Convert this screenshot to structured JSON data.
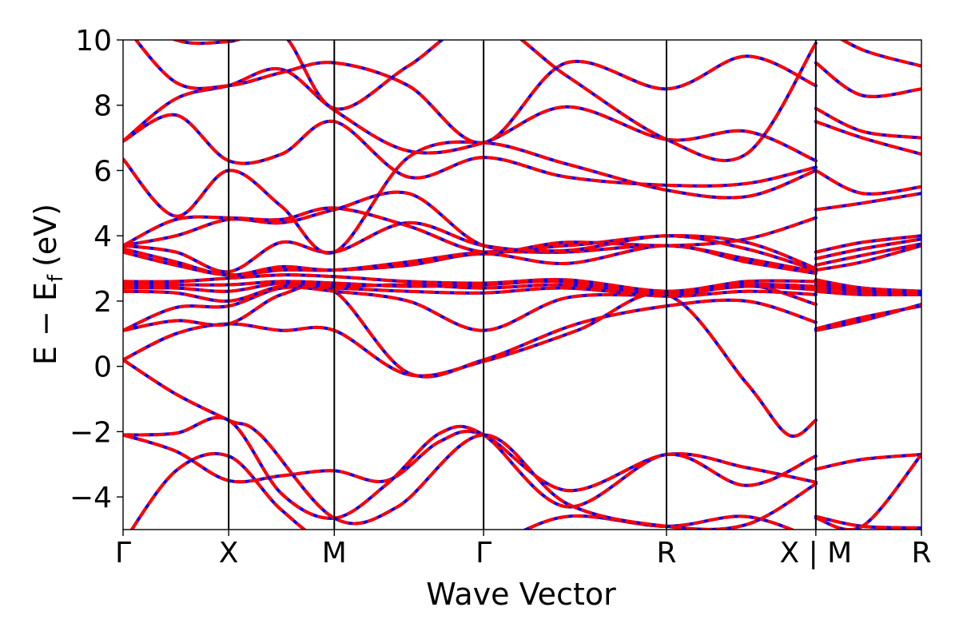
{
  "chart_data": {
    "type": "line",
    "xlabel": "Wave Vector",
    "ylabel_main": "E − E",
    "ylabel_sub": "f",
    "ylabel_unit": "(eV)",
    "ylim": [
      -5,
      10
    ],
    "yticks": [
      {
        "value": -4,
        "label": "−4"
      },
      {
        "value": -2,
        "label": "−2"
      },
      {
        "value": 0,
        "label": "0"
      },
      {
        "value": 2,
        "label": "2"
      },
      {
        "value": 4,
        "label": "4"
      },
      {
        "value": 6,
        "label": "6"
      },
      {
        "value": 8,
        "label": "8"
      },
      {
        "value": 10,
        "label": "10"
      }
    ],
    "kpoints": [
      {
        "x": 0.0,
        "label": "Γ"
      },
      {
        "x": 1.0,
        "label": "X"
      },
      {
        "x": 2.0,
        "label": "M"
      },
      {
        "x": 3.414,
        "label": "Γ"
      },
      {
        "x": 5.146,
        "label": "R"
      },
      {
        "x": 6.56,
        "label": "X | M"
      },
      {
        "x": 7.56,
        "label": "R"
      }
    ],
    "xlim": [
      0,
      7.56
    ],
    "series_colors": {
      "reference": "#0000ff",
      "comparison": "#ff0000"
    },
    "bands": [
      [
        [
          0,
          -5.4
        ],
        [
          0.5,
          -3.2
        ],
        [
          1.0,
          -2.75
        ],
        [
          1.5,
          -4.4
        ],
        [
          2.0,
          -5.5
        ],
        [
          2.7,
          -5.5
        ],
        [
          3.414,
          -5.5
        ],
        [
          4.2,
          -4.6
        ],
        [
          5.146,
          -4.9
        ],
        [
          5.9,
          -4.6
        ],
        [
          6.56,
          -5.3
        ],
        [
          6.56,
          -4.6
        ],
        [
          7.0,
          -4.9
        ],
        [
          7.56,
          -4.95
        ]
      ],
      [
        [
          0,
          -2.1
        ],
        [
          0.5,
          -2.6
        ],
        [
          1.0,
          -3.5
        ],
        [
          1.5,
          -3.35
        ],
        [
          2.0,
          -3.2
        ],
        [
          2.5,
          -3.5
        ],
        [
          3.0,
          -2.3
        ],
        [
          3.414,
          -2.1
        ],
        [
          4.2,
          -3.8
        ],
        [
          5.146,
          -2.7
        ],
        [
          5.9,
          -3.1
        ],
        [
          6.56,
          -3.55
        ],
        [
          6.56,
          -3.15
        ],
        [
          7.0,
          -2.85
        ],
        [
          7.56,
          -2.7
        ]
      ],
      [
        [
          0,
          -2.1
        ],
        [
          0.5,
          -2.05
        ],
        [
          1.0,
          -1.65
        ],
        [
          1.5,
          -3.9
        ],
        [
          2.0,
          -4.65
        ],
        [
          2.5,
          -3.6
        ],
        [
          3.0,
          -2.05
        ],
        [
          3.414,
          -2.1
        ],
        [
          4.2,
          -4.3
        ],
        [
          5.146,
          -2.7
        ],
        [
          5.9,
          -3.65
        ],
        [
          6.56,
          -2.75
        ],
        [
          6.56,
          -4.65
        ],
        [
          7.0,
          -4.9
        ],
        [
          7.56,
          -2.7
        ]
      ],
      [
        [
          0,
          0.2
        ],
        [
          0.5,
          -0.85
        ],
        [
          1.0,
          -1.65
        ],
        [
          1.3,
          -2.1
        ],
        [
          2.0,
          -4.65
        ],
        [
          2.6,
          -4.3
        ],
        [
          3.414,
          -2.1
        ],
        [
          4.2,
          -4.2
        ],
        [
          5.146,
          -4.9
        ],
        [
          5.9,
          -4.85
        ],
        [
          6.56,
          -3.6
        ]
      ],
      [
        [
          0,
          0.2
        ],
        [
          0.5,
          1.0
        ],
        [
          1.0,
          1.3
        ],
        [
          1.5,
          1.1
        ],
        [
          2.0,
          1.1
        ],
        [
          2.7,
          -0.25
        ],
        [
          3.414,
          0.15
        ],
        [
          4.3,
          1.1
        ],
        [
          5.146,
          2.2
        ],
        [
          5.9,
          -0.5
        ],
        [
          6.3,
          -2.1
        ],
        [
          6.56,
          -1.65
        ],
        [
          6.56,
          1.15
        ],
        [
          7.0,
          1.5
        ],
        [
          7.56,
          1.85
        ]
      ],
      [
        [
          0,
          1.1
        ],
        [
          0.5,
          1.4
        ],
        [
          1.0,
          1.3
        ],
        [
          1.5,
          2.2
        ],
        [
          2.0,
          2.3
        ],
        [
          2.7,
          -0.2
        ],
        [
          3.414,
          0.2
        ],
        [
          4.3,
          1.3
        ],
        [
          5.146,
          1.85
        ],
        [
          5.9,
          2.0
        ],
        [
          6.56,
          1.35
        ],
        [
          6.56,
          1.1
        ],
        [
          7.0,
          1.4
        ],
        [
          7.56,
          1.9
        ]
      ],
      [
        [
          0,
          1.1
        ],
        [
          0.5,
          1.8
        ],
        [
          1.0,
          1.85
        ],
        [
          1.5,
          2.4
        ],
        [
          2.0,
          2.3
        ],
        [
          2.7,
          2.0
        ],
        [
          3.414,
          1.1
        ],
        [
          4.2,
          2.1
        ],
        [
          5.146,
          2.2
        ],
        [
          5.9,
          2.5
        ],
        [
          6.56,
          1.9
        ],
        [
          6.56,
          2.3
        ],
        [
          7.0,
          2.2
        ],
        [
          7.56,
          2.2
        ]
      ],
      [
        [
          0,
          2.3
        ],
        [
          0.5,
          2.25
        ],
        [
          1.0,
          2.0
        ],
        [
          1.5,
          2.45
        ],
        [
          2.0,
          2.4
        ],
        [
          2.7,
          2.3
        ],
        [
          3.414,
          2.25
        ],
        [
          4.2,
          2.4
        ],
        [
          5.146,
          2.15
        ],
        [
          5.9,
          2.3
        ],
        [
          6.56,
          2.2
        ],
        [
          6.56,
          2.4
        ],
        [
          7.0,
          2.3
        ],
        [
          7.56,
          2.25
        ]
      ],
      [
        [
          0,
          2.4
        ],
        [
          0.5,
          2.4
        ],
        [
          1.0,
          2.3
        ],
        [
          1.5,
          2.55
        ],
        [
          2.0,
          2.45
        ],
        [
          2.7,
          2.5
        ],
        [
          3.414,
          2.4
        ],
        [
          4.2,
          2.5
        ],
        [
          5.146,
          2.25
        ],
        [
          5.9,
          2.45
        ],
        [
          6.56,
          2.35
        ],
        [
          6.56,
          2.5
        ],
        [
          7.0,
          2.35
        ],
        [
          7.56,
          2.25
        ]
      ],
      [
        [
          0,
          2.5
        ],
        [
          0.5,
          2.5
        ],
        [
          1.0,
          2.5
        ],
        [
          1.5,
          2.6
        ],
        [
          2.0,
          2.55
        ],
        [
          2.7,
          2.45
        ],
        [
          3.414,
          2.5
        ],
        [
          4.2,
          2.6
        ],
        [
          5.146,
          2.2
        ],
        [
          5.9,
          2.5
        ],
        [
          6.56,
          2.45
        ],
        [
          6.56,
          2.55
        ],
        [
          7.0,
          2.4
        ],
        [
          7.56,
          2.2
        ]
      ],
      [
        [
          0,
          2.6
        ],
        [
          0.5,
          2.6
        ],
        [
          1.0,
          2.7
        ],
        [
          1.5,
          2.8
        ],
        [
          2.0,
          2.75
        ],
        [
          2.7,
          2.6
        ],
        [
          3.414,
          2.55
        ],
        [
          4.2,
          2.65
        ],
        [
          5.146,
          2.3
        ],
        [
          5.9,
          2.6
        ],
        [
          6.56,
          2.6
        ],
        [
          6.56,
          2.65
        ],
        [
          7.0,
          2.4
        ],
        [
          7.56,
          2.3
        ]
      ],
      [
        [
          0,
          3.5
        ],
        [
          0.5,
          3.1
        ],
        [
          1.0,
          2.8
        ],
        [
          1.5,
          2.95
        ],
        [
          2.0,
          2.95
        ],
        [
          2.7,
          3.1
        ],
        [
          3.414,
          3.45
        ],
        [
          4.2,
          3.15
        ],
        [
          5.146,
          3.7
        ],
        [
          5.9,
          3.2
        ],
        [
          6.56,
          2.85
        ],
        [
          6.56,
          2.95
        ],
        [
          7.0,
          3.2
        ],
        [
          7.56,
          3.7
        ]
      ],
      [
        [
          0,
          3.6
        ],
        [
          0.5,
          3.2
        ],
        [
          1.0,
          2.8
        ],
        [
          1.5,
          3.05
        ],
        [
          2.0,
          2.95
        ],
        [
          2.7,
          3.2
        ],
        [
          3.414,
          3.5
        ],
        [
          4.2,
          3.5
        ],
        [
          5.146,
          3.7
        ],
        [
          5.9,
          3.3
        ],
        [
          6.56,
          2.9
        ],
        [
          6.56,
          3.1
        ],
        [
          7.0,
          3.4
        ],
        [
          7.56,
          3.75
        ]
      ],
      [
        [
          0,
          3.7
        ],
        [
          0.5,
          3.5
        ],
        [
          1.0,
          2.9
        ],
        [
          1.5,
          3.8
        ],
        [
          2.0,
          3.5
        ],
        [
          2.7,
          4.4
        ],
        [
          3.414,
          3.7
        ],
        [
          4.2,
          3.55
        ],
        [
          5.146,
          4.0
        ],
        [
          5.9,
          3.6
        ],
        [
          6.56,
          2.95
        ],
        [
          6.56,
          3.3
        ],
        [
          7.0,
          3.6
        ],
        [
          7.56,
          3.9
        ]
      ],
      [
        [
          0,
          3.7
        ],
        [
          0.5,
          4.0
        ],
        [
          1.0,
          4.5
        ],
        [
          1.5,
          4.4
        ],
        [
          2.0,
          4.8
        ],
        [
          2.7,
          5.3
        ],
        [
          3.414,
          3.7
        ],
        [
          4.2,
          3.7
        ],
        [
          5.146,
          4.0
        ],
        [
          5.9,
          3.8
        ],
        [
          6.56,
          3.0
        ],
        [
          6.56,
          3.5
        ],
        [
          7.0,
          3.8
        ],
        [
          7.56,
          4.0
        ]
      ],
      [
        [
          0,
          3.7
        ],
        [
          0.5,
          4.5
        ],
        [
          1.0,
          4.55
        ],
        [
          1.5,
          4.5
        ],
        [
          2.0,
          4.85
        ],
        [
          2.7,
          4.3
        ],
        [
          3.414,
          3.5
        ],
        [
          4.2,
          3.8
        ],
        [
          5.146,
          3.7
        ],
        [
          5.9,
          3.9
        ],
        [
          6.56,
          4.55
        ],
        [
          6.56,
          4.8
        ],
        [
          7.0,
          5.0
        ],
        [
          7.56,
          5.3
        ]
      ],
      [
        [
          0,
          6.35
        ],
        [
          0.5,
          4.6
        ],
        [
          1.0,
          6.0
        ],
        [
          1.5,
          4.9
        ],
        [
          2.0,
          3.5
        ],
        [
          2.7,
          6.4
        ],
        [
          3.414,
          6.85
        ],
        [
          4.2,
          6.2
        ],
        [
          5.146,
          5.4
        ],
        [
          5.9,
          5.2
        ],
        [
          6.56,
          6.0
        ],
        [
          6.56,
          6.0
        ],
        [
          7.0,
          5.3
        ],
        [
          7.56,
          5.5
        ]
      ],
      [
        [
          0,
          6.9
        ],
        [
          0.5,
          7.7
        ],
        [
          1.0,
          6.3
        ],
        [
          1.5,
          6.5
        ],
        [
          2.0,
          7.5
        ],
        [
          2.7,
          5.8
        ],
        [
          3.414,
          6.4
        ],
        [
          4.2,
          5.8
        ],
        [
          5.146,
          5.55
        ],
        [
          5.9,
          5.6
        ],
        [
          6.56,
          6.1
        ],
        [
          6.56,
          7.5
        ],
        [
          7.0,
          7.0
        ],
        [
          7.56,
          6.5
        ]
      ],
      [
        [
          0,
          6.9
        ],
        [
          0.5,
          8.2
        ],
        [
          1.0,
          8.6
        ],
        [
          1.5,
          9.1
        ],
        [
          2.0,
          7.85
        ],
        [
          2.7,
          6.6
        ],
        [
          3.414,
          6.85
        ],
        [
          4.2,
          7.95
        ],
        [
          5.146,
          6.95
        ],
        [
          5.9,
          7.2
        ],
        [
          6.56,
          6.3
        ],
        [
          6.56,
          7.9
        ],
        [
          7.0,
          7.2
        ],
        [
          7.56,
          7.0
        ]
      ],
      [
        [
          0,
          10.5
        ],
        [
          0.5,
          8.7
        ],
        [
          1.0,
          8.6
        ],
        [
          1.5,
          9.0
        ],
        [
          2.0,
          9.3
        ],
        [
          2.7,
          8.6
        ],
        [
          3.414,
          6.85
        ],
        [
          4.2,
          9.3
        ],
        [
          5.146,
          8.5
        ],
        [
          5.9,
          9.5
        ],
        [
          6.56,
          8.6
        ],
        [
          6.56,
          9.3
        ],
        [
          7.0,
          8.3
        ],
        [
          7.56,
          8.5
        ]
      ],
      [
        [
          0,
          11.0
        ],
        [
          0.5,
          10.0
        ],
        [
          1.0,
          9.95
        ],
        [
          1.5,
          10.2
        ],
        [
          2.0,
          7.9
        ],
        [
          2.7,
          9.2
        ],
        [
          3.414,
          10.6
        ],
        [
          4.2,
          8.9
        ],
        [
          5.146,
          6.95
        ],
        [
          5.9,
          6.5
        ],
        [
          6.56,
          9.9
        ],
        [
          6.56,
          10.5
        ],
        [
          7.0,
          9.7
        ],
        [
          7.56,
          9.2
        ]
      ]
    ]
  }
}
